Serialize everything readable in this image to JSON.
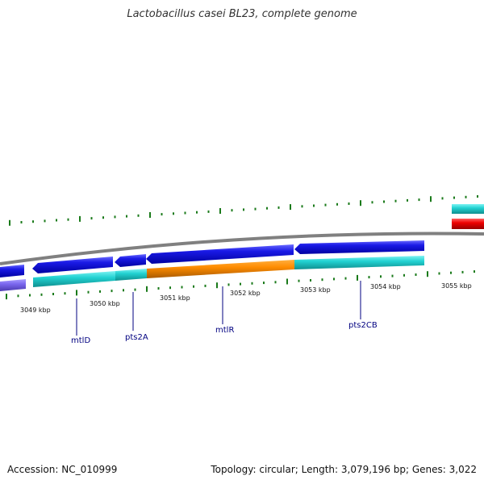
{
  "title": "Lactobacillus casei BL23, complete genome",
  "accession": "Accession: NC_010999",
  "summary": "Topology: circular; Length: 3,079,196 bp; Genes: 3,022",
  "kbp_labels": [
    "3049 kbp",
    "3050 kbp",
    "3051 kbp",
    "3052 kbp",
    "3053 kbp",
    "3054 kbp",
    "3055 kbp"
  ],
  "gene_labels": [
    "mtlD",
    "pts2A",
    "mtlR",
    "pts2CB"
  ],
  "colors": {
    "cds": "#1010e0",
    "gene": "#20d0d0",
    "regulator": "#ff8c00",
    "rna": "#ee0000",
    "other": "#7b68ee",
    "backbone": "#808080",
    "ticks": "#1a7a1a",
    "label": "#000080"
  }
}
